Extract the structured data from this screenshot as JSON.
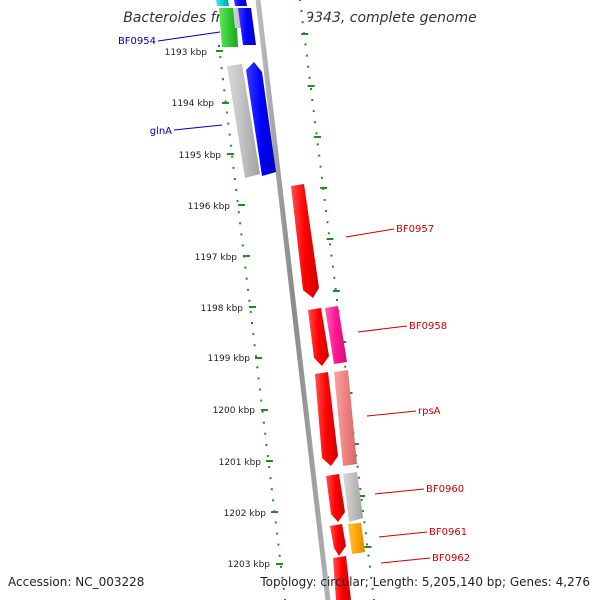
{
  "title": "Bacteroides fragilis NCTC 9343, complete genome",
  "accession": "Accession: NC_003228",
  "topology": "Topology: circular; Length: 5,205,140 bp; Genes: 4,276",
  "ruler": {
    "unit": "kbp",
    "ticks": [
      "1193 kbp",
      "1194 kbp",
      "1195 kbp",
      "1196 kbp",
      "1197 kbp",
      "1198 kbp",
      "1199 kbp",
      "1200 kbp",
      "1201 kbp",
      "1202 kbp",
      "1203 kbp"
    ]
  },
  "genes": {
    "forward": [
      {
        "label": "BF0954",
        "color": "#0000ee"
      },
      {
        "label": "glnA",
        "color": "#0000ee"
      }
    ],
    "reverse": [
      {
        "label": "BF0957",
        "color": "#ff0000"
      },
      {
        "label": "BF0958",
        "color": "#ff0000"
      },
      {
        "label": "rpsA",
        "color": "#ff0000"
      },
      {
        "label": "BF0960",
        "color": "#ff0000"
      },
      {
        "label": "BF0961",
        "color": "#ff0000"
      },
      {
        "label": "BF0962",
        "color": "#ff0000"
      }
    ]
  },
  "colors": {
    "forward_label": "#0000aa",
    "reverse_label": "#cc0000",
    "tick": "#228b22",
    "backbone": "#999999"
  }
}
